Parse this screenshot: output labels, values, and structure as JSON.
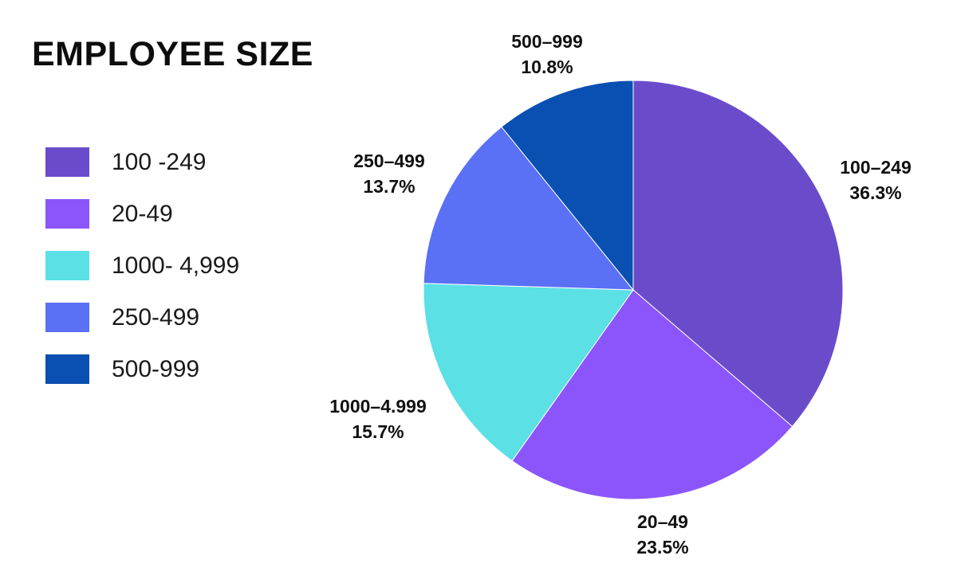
{
  "title": "EMPLOYEE SIZE",
  "legend": {
    "items": [
      {
        "label": "100 -249",
        "color": "#6A4CCB"
      },
      {
        "label": "20-49",
        "color": "#8B55FB"
      },
      {
        "label": "1000- 4,999",
        "color": "#5BE0E6"
      },
      {
        "label": "250-499",
        "color": "#5A70F5"
      },
      {
        "label": "500-999",
        "color": "#0A4FB2"
      }
    ]
  },
  "chart_data": {
    "type": "pie",
    "title": "EMPLOYEE SIZE",
    "categories": [
      "100–249",
      "20–49",
      "1000–4.999",
      "250–499",
      "500–999"
    ],
    "values": [
      36.3,
      23.5,
      15.7,
      13.7,
      10.8
    ],
    "unit": "%",
    "colors": [
      "#6A4CCB",
      "#8B55FB",
      "#5BE0E6",
      "#5A70F5",
      "#0A4FB2"
    ],
    "start_angle_deg": 0,
    "direction": "clockwise",
    "legend_position": "left",
    "slice_stroke": "#ffffff"
  },
  "slice_labels": [
    {
      "category": "100–249",
      "percent": "36.3%"
    },
    {
      "category": "20–49",
      "percent": "23.5%"
    },
    {
      "category": "1000–4.999",
      "percent": "15.7%"
    },
    {
      "category": "250–499",
      "percent": "13.7%"
    },
    {
      "category": "500–999",
      "percent": "10.8%"
    }
  ]
}
